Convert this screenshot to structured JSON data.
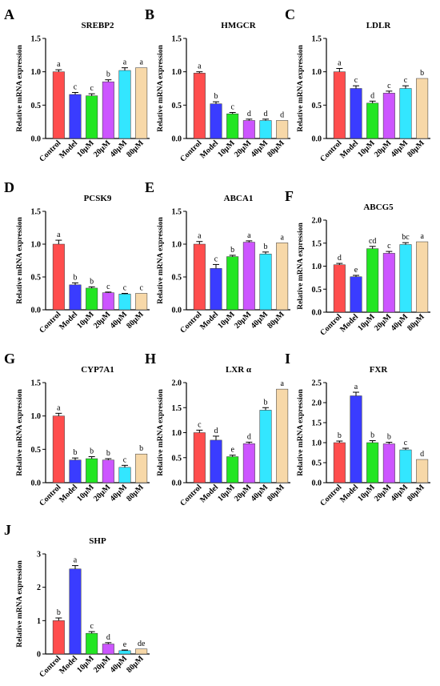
{
  "figure": {
    "categories": [
      "Control",
      "Model",
      "10μM",
      "20μM",
      "40μM",
      "80μM"
    ],
    "ylabel": "Relative mRNA expression",
    "bar_colors": [
      "#ff4d4d",
      "#3a3cff",
      "#22e622",
      "#cc55ff",
      "#33e6ff",
      "#f7d8a8"
    ]
  },
  "chart_data": [
    {
      "type": "bar",
      "panel": "A",
      "title": "SREBP2",
      "categories": [
        "Control",
        "Model",
        "10μM",
        "20μM",
        "40μM",
        "80μM"
      ],
      "values": [
        1.0,
        0.66,
        0.64,
        0.85,
        1.02,
        1.06
      ],
      "errors": [
        0.03,
        0.03,
        0.03,
        0.03,
        0.04,
        0.0
      ],
      "sig_letters": [
        "a",
        "c",
        "c",
        "b",
        "a",
        "a"
      ],
      "ylim": [
        0,
        1.5
      ],
      "yticks": [
        "0.0",
        "0.5",
        "1.0",
        "1.5"
      ],
      "ytick_values": [
        0,
        0.5,
        1.0,
        1.5
      ]
    },
    {
      "type": "bar",
      "panel": "B",
      "title": "HMGCR",
      "categories": [
        "Control",
        "Model",
        "10μM",
        "20μM",
        "40μM",
        "80μM"
      ],
      "values": [
        0.98,
        0.52,
        0.37,
        0.27,
        0.27,
        0.27
      ],
      "errors": [
        0.02,
        0.03,
        0.02,
        0.02,
        0.02,
        0.0
      ],
      "sig_letters": [
        "a",
        "b",
        "c",
        "d",
        "d",
        "d"
      ],
      "ylim": [
        0,
        1.5
      ],
      "yticks": [
        "0.0",
        "0.5",
        "1.0",
        "1.5"
      ],
      "ytick_values": [
        0,
        0.5,
        1.0,
        1.5
      ]
    },
    {
      "type": "bar",
      "panel": "C",
      "title": "LDLR",
      "categories": [
        "Control",
        "Model",
        "10μM",
        "20μM",
        "40μM",
        "80μM"
      ],
      "values": [
        1.0,
        0.75,
        0.53,
        0.68,
        0.75,
        0.9
      ],
      "errors": [
        0.05,
        0.04,
        0.03,
        0.03,
        0.04,
        0.0
      ],
      "sig_letters": [
        "a",
        "c",
        "d",
        "c",
        "c",
        "b"
      ],
      "ylim": [
        0,
        1.5
      ],
      "yticks": [
        "0.0",
        "0.5",
        "1.0",
        "1.5"
      ],
      "ytick_values": [
        0,
        0.5,
        1.0,
        1.5
      ]
    },
    {
      "type": "bar",
      "panel": "D",
      "title": "PCSK9",
      "categories": [
        "Control",
        "Model",
        "10μM",
        "20μM",
        "40μM",
        "80μM"
      ],
      "values": [
        1.0,
        0.38,
        0.33,
        0.26,
        0.24,
        0.25
      ],
      "errors": [
        0.06,
        0.03,
        0.02,
        0.01,
        0.01,
        0.0
      ],
      "sig_letters": [
        "a",
        "b",
        "b",
        "c",
        "c",
        "c"
      ],
      "ylim": [
        0,
        1.5
      ],
      "yticks": [
        "0.0",
        "0.5",
        "1.0",
        "1.5"
      ],
      "ytick_values": [
        0,
        0.5,
        1.0,
        1.5
      ]
    },
    {
      "type": "bar",
      "panel": "E",
      "title": "ABCA1",
      "categories": [
        "Control",
        "Model",
        "10μM",
        "20μM",
        "40μM",
        "80μM"
      ],
      "values": [
        1.0,
        0.63,
        0.81,
        1.03,
        0.85,
        1.02
      ],
      "errors": [
        0.04,
        0.06,
        0.02,
        0.02,
        0.03,
        0.0
      ],
      "sig_letters": [
        "a",
        "c",
        "b",
        "a",
        "b",
        "a"
      ],
      "ylim": [
        0,
        1.5
      ],
      "yticks": [
        "0.0",
        "0.5",
        "1.0",
        "1.5"
      ],
      "ytick_values": [
        0,
        0.5,
        1.0,
        1.5
      ]
    },
    {
      "type": "bar",
      "panel": "F",
      "title": "ABCG5",
      "categories": [
        "Control",
        "Model",
        "10μM",
        "20μM",
        "40μM",
        "80μM"
      ],
      "values": [
        1.03,
        0.77,
        1.38,
        1.28,
        1.47,
        1.53
      ],
      "errors": [
        0.03,
        0.03,
        0.05,
        0.04,
        0.04,
        0.0
      ],
      "sig_letters": [
        "d",
        "e",
        "cd",
        "c",
        "bc",
        "a"
      ],
      "ylim": [
        0,
        2.0
      ],
      "yticks": [
        "0.0",
        "0.5",
        "1.0",
        "1.5",
        "2.0"
      ],
      "ytick_values": [
        0,
        0.5,
        1.0,
        1.5,
        2.0
      ]
    },
    {
      "type": "bar",
      "panel": "G",
      "title": "CYP7A1",
      "categories": [
        "Control",
        "Model",
        "10μM",
        "20μM",
        "40μM",
        "80μM"
      ],
      "values": [
        1.0,
        0.34,
        0.36,
        0.34,
        0.23,
        0.43
      ],
      "errors": [
        0.04,
        0.03,
        0.03,
        0.02,
        0.03,
        0.0
      ],
      "sig_letters": [
        "a",
        "b",
        "b",
        "b",
        "c",
        "b"
      ],
      "ylim": [
        0,
        1.5
      ],
      "yticks": [
        "0.0",
        "0.5",
        "1.0",
        "1.5"
      ],
      "ytick_values": [
        0,
        0.5,
        1.0,
        1.5
      ]
    },
    {
      "type": "bar",
      "panel": "H",
      "title": "LXR α",
      "categories": [
        "Control",
        "Model",
        "10μM",
        "20μM",
        "40μM",
        "80μM"
      ],
      "values": [
        1.0,
        0.85,
        0.52,
        0.78,
        1.45,
        1.87
      ],
      "errors": [
        0.05,
        0.08,
        0.03,
        0.03,
        0.05,
        0.0
      ],
      "sig_letters": [
        "c",
        "d",
        "e",
        "d",
        "b",
        "a"
      ],
      "ylim": [
        0,
        2.0
      ],
      "yticks": [
        "0.0",
        "0.5",
        "1.0",
        "1.5",
        "2.0"
      ],
      "ytick_values": [
        0,
        0.5,
        1.0,
        1.5,
        2.0
      ]
    },
    {
      "type": "bar",
      "panel": "I",
      "title": "FXR",
      "categories": [
        "Control",
        "Model",
        "10μM",
        "20μM",
        "40μM",
        "80μM"
      ],
      "values": [
        1.0,
        2.17,
        1.0,
        0.97,
        0.82,
        0.58
      ],
      "errors": [
        0.04,
        0.09,
        0.05,
        0.04,
        0.04,
        0.0
      ],
      "sig_letters": [
        "b",
        "a",
        "b",
        "b",
        "c",
        "d"
      ],
      "ylim": [
        0,
        2.5
      ],
      "yticks": [
        "0.0",
        "0.5",
        "1.0",
        "1.5",
        "2.0",
        "2.5"
      ],
      "ytick_values": [
        0,
        0.5,
        1.0,
        1.5,
        2.0,
        2.5
      ]
    },
    {
      "type": "bar",
      "panel": "J",
      "title": "SHP",
      "categories": [
        "Control",
        "Model",
        "10μM",
        "20μM",
        "40μM",
        "80μM"
      ],
      "values": [
        1.0,
        2.55,
        0.62,
        0.3,
        0.1,
        0.15
      ],
      "errors": [
        0.08,
        0.1,
        0.05,
        0.04,
        0.02,
        0.0
      ],
      "sig_letters": [
        "b",
        "a",
        "c",
        "d",
        "e",
        "de"
      ],
      "ylim": [
        0,
        3
      ],
      "yticks": [
        "0",
        "1",
        "2",
        "3"
      ],
      "ytick_values": [
        0,
        1,
        2,
        3
      ]
    }
  ]
}
